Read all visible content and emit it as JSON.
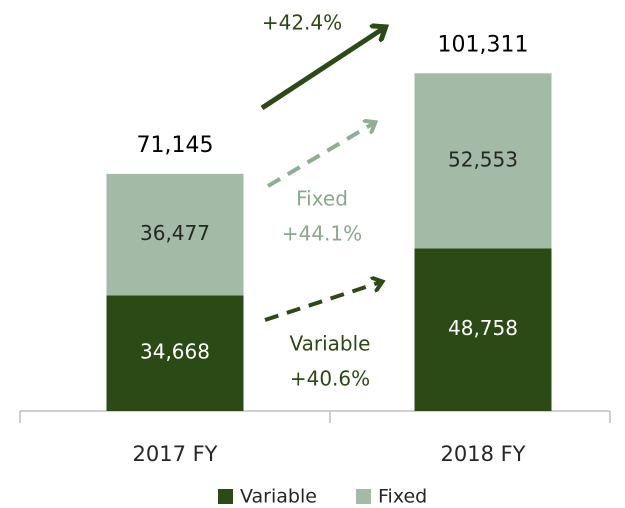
{
  "chart_data": {
    "type": "stacked_bar",
    "categories": [
      "2017 FY",
      "2018 FY"
    ],
    "series": [
      {
        "name": "Variable",
        "color": "#2b4a15",
        "values": [
          34668,
          48758
        ],
        "value_labels": [
          "34,668",
          "48,758"
        ]
      },
      {
        "name": "Fixed",
        "color": "#a3bba6",
        "values": [
          36477,
          52553
        ],
        "value_labels": [
          "36,477",
          "52,553"
        ]
      }
    ],
    "totals": [
      71145,
      101311
    ],
    "total_labels": [
      "71,145",
      "101,311"
    ],
    "ylim": [
      0,
      120000
    ],
    "annotations": [
      {
        "lines": [
          "+42.4%"
        ],
        "color": "#2b4a15"
      },
      {
        "lines": [
          "Fixed",
          "+44.1%"
        ],
        "color": "#8aa98c"
      },
      {
        "lines": [
          "Variable",
          "+40.6%"
        ],
        "color": "#2b4a15"
      }
    ],
    "legend": "bottom"
  }
}
